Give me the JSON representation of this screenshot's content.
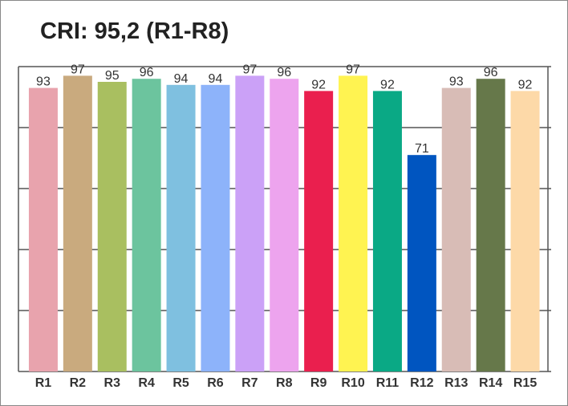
{
  "chart_data": {
    "type": "bar",
    "title": "CRI: 95,2 (R1-R8)",
    "categories": [
      "R1",
      "R2",
      "R3",
      "R4",
      "R5",
      "R6",
      "R7",
      "R8",
      "R9",
      "R10",
      "R11",
      "R12",
      "R13",
      "R14",
      "R15"
    ],
    "values": [
      93,
      97,
      95,
      96,
      94,
      94,
      97,
      96,
      92,
      97,
      92,
      71,
      93,
      96,
      92
    ],
    "colors": [
      "#e8a3ad",
      "#c9aa7e",
      "#a9bf60",
      "#6cc49e",
      "#7fc0e0",
      "#8db3fa",
      "#cba1f7",
      "#eda4ee",
      "#ea1f4e",
      "#fff351",
      "#0aa985",
      "#0055c0",
      "#d8bcb6",
      "#66784a",
      "#fdd9a8"
    ],
    "ylim": [
      0,
      100
    ],
    "yticks": [
      0,
      20,
      40,
      60,
      80,
      100
    ],
    "grid": true
  }
}
